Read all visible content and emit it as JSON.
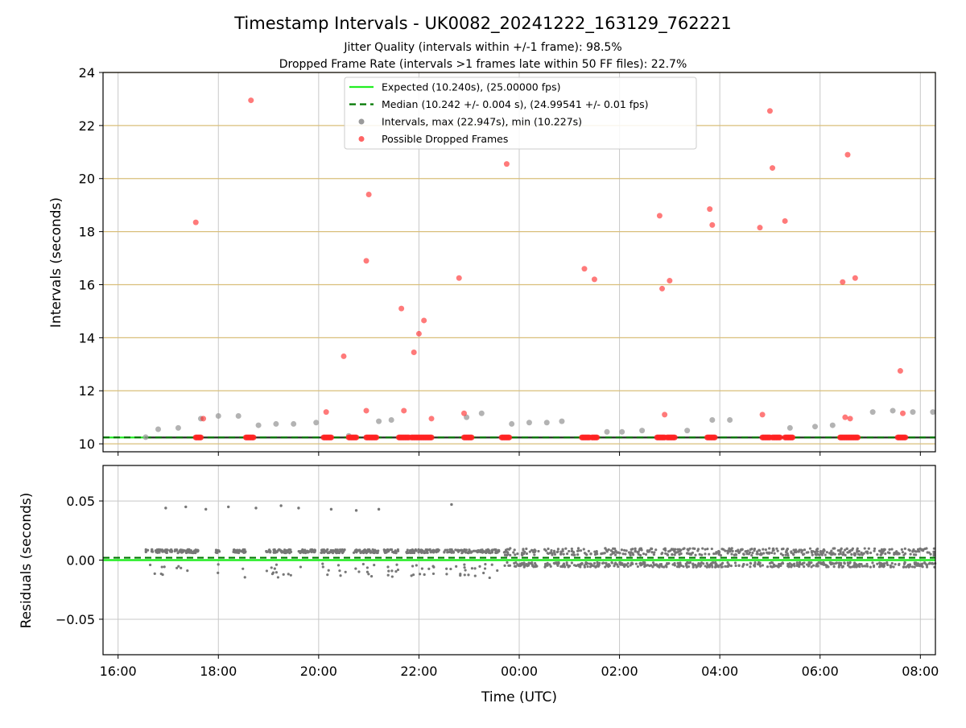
{
  "title": "Timestamp Intervals - UK0082_20241222_163129_762221",
  "subtitle_line1": "Jitter Quality (intervals within +/-1 frame): 98.5%",
  "subtitle_line2": "Dropped Frame Rate (intervals >1 frames late within 50 FF files): 22.7%",
  "colors": {
    "expected": "#22ee22",
    "median": "#007700",
    "intervals": "#9a9a9a",
    "dropped": "#ff2222",
    "residuals": "#777777",
    "hgrid_top": "#d9bf7a",
    "grid": "#c8c8c8",
    "dark_line": "#333333"
  },
  "chart_data": [
    {
      "type": "scatter",
      "panel": "top",
      "ylabel": "Intervals (seconds)",
      "ylim": [
        9.7,
        24
      ],
      "xlim_hours": [
        15.7,
        32.3
      ],
      "yticks": [
        10,
        12,
        14,
        16,
        18,
        20,
        22,
        24
      ],
      "grid": true,
      "legend_position": "top-center",
      "legend": [
        {
          "label": "Expected (10.240s), (25.00000 fps)",
          "kind": "solid-line"
        },
        {
          "label": "Median (10.242 +/- 0.004 s), (24.99541 +/- 0.01 fps)",
          "kind": "dashed-line"
        },
        {
          "label": "Intervals, max (22.947s), min (10.227s)",
          "kind": "grey-dot"
        },
        {
          "label": "Possible Dropped Frames",
          "kind": "red-dot"
        }
      ],
      "expected": 10.24,
      "median": 10.242,
      "series": [
        {
          "name": "Intervals, max (22.947s), min (10.227s)",
          "x_hours": [
            16.55,
            16.8,
            17.2,
            17.65,
            18.0,
            18.4,
            18.8,
            19.15,
            19.5,
            19.95,
            20.6,
            21.2,
            21.45,
            22.95,
            23.25,
            23.85,
            24.2,
            24.55,
            24.85,
            25.75,
            26.05,
            26.45,
            27.35,
            27.85,
            28.2,
            29.4,
            29.9,
            30.25,
            31.05,
            31.45,
            31.85,
            32.25
          ],
          "y": [
            10.25,
            10.55,
            10.6,
            10.95,
            11.05,
            11.05,
            10.7,
            10.75,
            10.75,
            10.8,
            10.3,
            10.85,
            10.9,
            11.0,
            11.15,
            10.75,
            10.8,
            10.8,
            10.85,
            10.45,
            10.45,
            10.5,
            10.5,
            10.9,
            10.9,
            10.6,
            10.65,
            10.7,
            11.2,
            11.25,
            11.2,
            11.2
          ]
        },
        {
          "name": "Possible Dropped Frames",
          "x_hours": [
            17.55,
            17.7,
            18.65,
            20.15,
            20.5,
            20.95,
            21.0,
            20.95,
            21.65,
            21.7,
            21.9,
            22.0,
            22.1,
            22.25,
            22.8,
            22.9,
            23.75,
            25.3,
            25.5,
            26.8,
            26.85,
            26.9,
            27.0,
            27.8,
            27.85,
            28.8,
            28.85,
            29.0,
            29.05,
            29.3,
            30.45,
            30.5,
            30.55,
            30.6,
            30.7,
            31.6,
            31.65
          ],
          "y": [
            18.35,
            10.95,
            22.95,
            11.2,
            13.3,
            11.25,
            19.4,
            16.9,
            15.1,
            11.25,
            13.45,
            14.15,
            14.65,
            10.95,
            16.25,
            11.15,
            20.55,
            16.6,
            16.2,
            18.6,
            15.85,
            11.1,
            16.15,
            18.85,
            18.25,
            18.15,
            11.1,
            22.55,
            20.4,
            18.4,
            16.1,
            11.0,
            20.9,
            10.95,
            16.25,
            12.75,
            11.15
          ]
        }
      ],
      "dropped_baseline_clusters_hours": [
        [
          17.55,
          17.65
        ],
        [
          18.55,
          18.7
        ],
        [
          20.1,
          20.25
        ],
        [
          20.6,
          20.75
        ],
        [
          20.95,
          21.15
        ],
        [
          21.6,
          21.8
        ],
        [
          21.85,
          22.25
        ],
        [
          22.9,
          23.05
        ],
        [
          23.65,
          23.8
        ],
        [
          25.25,
          25.4
        ],
        [
          25.45,
          25.55
        ],
        [
          26.75,
          26.9
        ],
        [
          26.95,
          27.1
        ],
        [
          27.75,
          27.9
        ],
        [
          28.85,
          29.0
        ],
        [
          29.05,
          29.2
        ],
        [
          29.3,
          29.45
        ],
        [
          30.4,
          30.75
        ],
        [
          31.55,
          31.7
        ]
      ]
    },
    {
      "type": "scatter",
      "panel": "bottom",
      "ylabel": "Residuals (seconds)",
      "xlabel": "Time (UTC)",
      "ylim": [
        -0.08,
        0.08
      ],
      "yticks": [
        0.05,
        0.0,
        -0.05
      ],
      "ytick_labels": [
        "0.05",
        "0.00",
        "−0.05"
      ],
      "xticks_hours": [
        16,
        18,
        20,
        22,
        24,
        26,
        28,
        30,
        32
      ],
      "xtick_labels": [
        "16:00",
        "18:00",
        "20:00",
        "22:00",
        "00:00",
        "02:00",
        "04:00",
        "06:00",
        "08:00"
      ],
      "expected_residual": 0.0,
      "median_residual": 0.002,
      "series": [
        {
          "name": "Residuals",
          "outliers_x_hours": [
            16.95,
            17.35,
            17.75,
            18.2,
            18.75,
            19.25,
            19.6,
            20.25,
            20.75,
            21.2,
            22.65
          ],
          "outliers_y": [
            0.044,
            0.045,
            0.043,
            0.045,
            0.044,
            0.046,
            0.044,
            0.043,
            0.042,
            0.043,
            0.047
          ]
        }
      ]
    }
  ]
}
